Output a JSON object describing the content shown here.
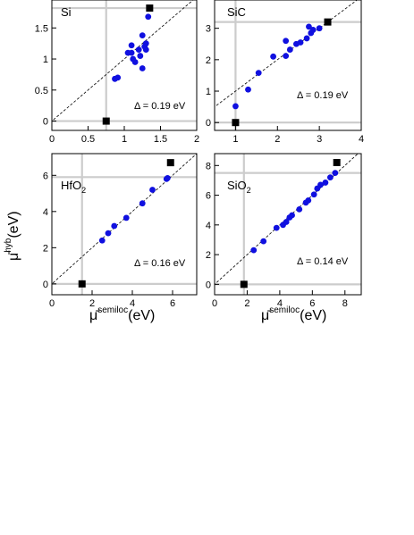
{
  "figure": {
    "y_axis_label": "μ̄",
    "y_axis_sup": "hyb",
    "y_axis_unit": "(eV)",
    "x_axis_label": "μ̄",
    "x_axis_sup": "semiloc",
    "x_axis_unit": "(eV)",
    "colors": {
      "points": "#1010e0",
      "reference": "#000000",
      "guides": "#cccccc",
      "frame": "#000000"
    }
  },
  "chart_data": [
    {
      "type": "scatter",
      "label_main": "Si",
      "label_sub": "",
      "delta": "Δ = 0.19 eV",
      "xlim": [
        0,
        2
      ],
      "ylim": [
        -0.15,
        1.95
      ],
      "xticks": [
        "0",
        "0.5",
        "1",
        "1.5",
        "2"
      ],
      "yticks": [
        "0",
        "0.5",
        "1",
        "1.5"
      ],
      "diagonal": true,
      "guides": {
        "x": 0.75,
        "y": 1.82
      },
      "reference_points": [
        [
          0.75,
          0.0
        ],
        [
          1.35,
          1.82
        ]
      ],
      "points": [
        [
          0.87,
          0.68
        ],
        [
          0.91,
          0.7
        ],
        [
          1.05,
          1.1
        ],
        [
          1.1,
          1.22
        ],
        [
          1.1,
          1.1
        ],
        [
          1.12,
          1.0
        ],
        [
          1.15,
          0.95
        ],
        [
          1.2,
          1.15
        ],
        [
          1.22,
          1.05
        ],
        [
          1.25,
          0.85
        ],
        [
          1.25,
          1.38
        ],
        [
          1.28,
          1.2
        ],
        [
          1.3,
          1.25
        ],
        [
          1.3,
          1.15
        ],
        [
          1.33,
          1.68
        ]
      ]
    },
    {
      "type": "scatter",
      "label_main": "SiC",
      "label_sub": "",
      "delta": "Δ = 0.19 eV",
      "xlim": [
        0.5,
        4
      ],
      "ylim": [
        -0.25,
        3.9
      ],
      "xticks": [
        "1",
        "2",
        "3",
        "4"
      ],
      "yticks": [
        "0",
        "1",
        "2",
        "3"
      ],
      "diagonal": true,
      "guides": {
        "x": 1.0,
        "y": 3.2
      },
      "reference_points": [
        [
          1.0,
          0.0
        ],
        [
          3.2,
          3.2
        ]
      ],
      "points": [
        [
          1.0,
          0.52
        ],
        [
          1.3,
          1.05
        ],
        [
          1.55,
          1.58
        ],
        [
          1.9,
          2.1
        ],
        [
          2.2,
          2.6
        ],
        [
          2.2,
          2.12
        ],
        [
          2.3,
          2.32
        ],
        [
          2.45,
          2.5
        ],
        [
          2.55,
          2.55
        ],
        [
          2.7,
          2.68
        ],
        [
          2.75,
          3.05
        ],
        [
          2.8,
          2.85
        ],
        [
          2.85,
          2.95
        ],
        [
          3.0,
          3.0
        ]
      ]
    },
    {
      "type": "scatter",
      "label_main": "HfO",
      "label_sub": "2",
      "delta": "Δ = 0.16 eV",
      "xlim": [
        0,
        7.2
      ],
      "ylim": [
        -0.6,
        7.2
      ],
      "xticks": [
        "0",
        "2",
        "4",
        "6"
      ],
      "yticks": [
        "0",
        "2",
        "4",
        "6"
      ],
      "diagonal": true,
      "guides": {
        "x": 1.5,
        "y": 5.9
      },
      "reference_points": [
        [
          1.5,
          0.0
        ],
        [
          5.9,
          6.7
        ]
      ],
      "points": [
        [
          2.5,
          2.4
        ],
        [
          2.8,
          2.8
        ],
        [
          3.1,
          3.2
        ],
        [
          3.7,
          3.65
        ],
        [
          4.5,
          4.45
        ],
        [
          5.0,
          5.2
        ],
        [
          5.7,
          5.8
        ],
        [
          5.75,
          5.85
        ]
      ]
    },
    {
      "type": "scatter",
      "label_main": "SiO",
      "label_sub": "2",
      "delta": "Δ = 0.14 eV",
      "xlim": [
        0,
        9
      ],
      "ylim": [
        -0.7,
        8.8
      ],
      "xticks": [
        "0",
        "2",
        "4",
        "6",
        "8"
      ],
      "yticks": [
        "0",
        "2",
        "4",
        "6",
        "8"
      ],
      "diagonal": true,
      "guides": {
        "x": 1.8,
        "y": 7.5
      },
      "reference_points": [
        [
          1.8,
          0.0
        ],
        [
          7.5,
          8.2
        ]
      ],
      "points": [
        [
          2.4,
          2.3
        ],
        [
          3.0,
          2.9
        ],
        [
          3.8,
          3.8
        ],
        [
          4.2,
          4.0
        ],
        [
          4.4,
          4.2
        ],
        [
          4.6,
          4.5
        ],
        [
          4.75,
          4.65
        ],
        [
          5.2,
          5.05
        ],
        [
          5.6,
          5.5
        ],
        [
          5.75,
          5.65
        ],
        [
          6.1,
          6.05
        ],
        [
          6.3,
          6.45
        ],
        [
          6.5,
          6.7
        ],
        [
          6.8,
          6.85
        ],
        [
          7.1,
          7.2
        ],
        [
          7.4,
          7.5
        ]
      ]
    }
  ]
}
